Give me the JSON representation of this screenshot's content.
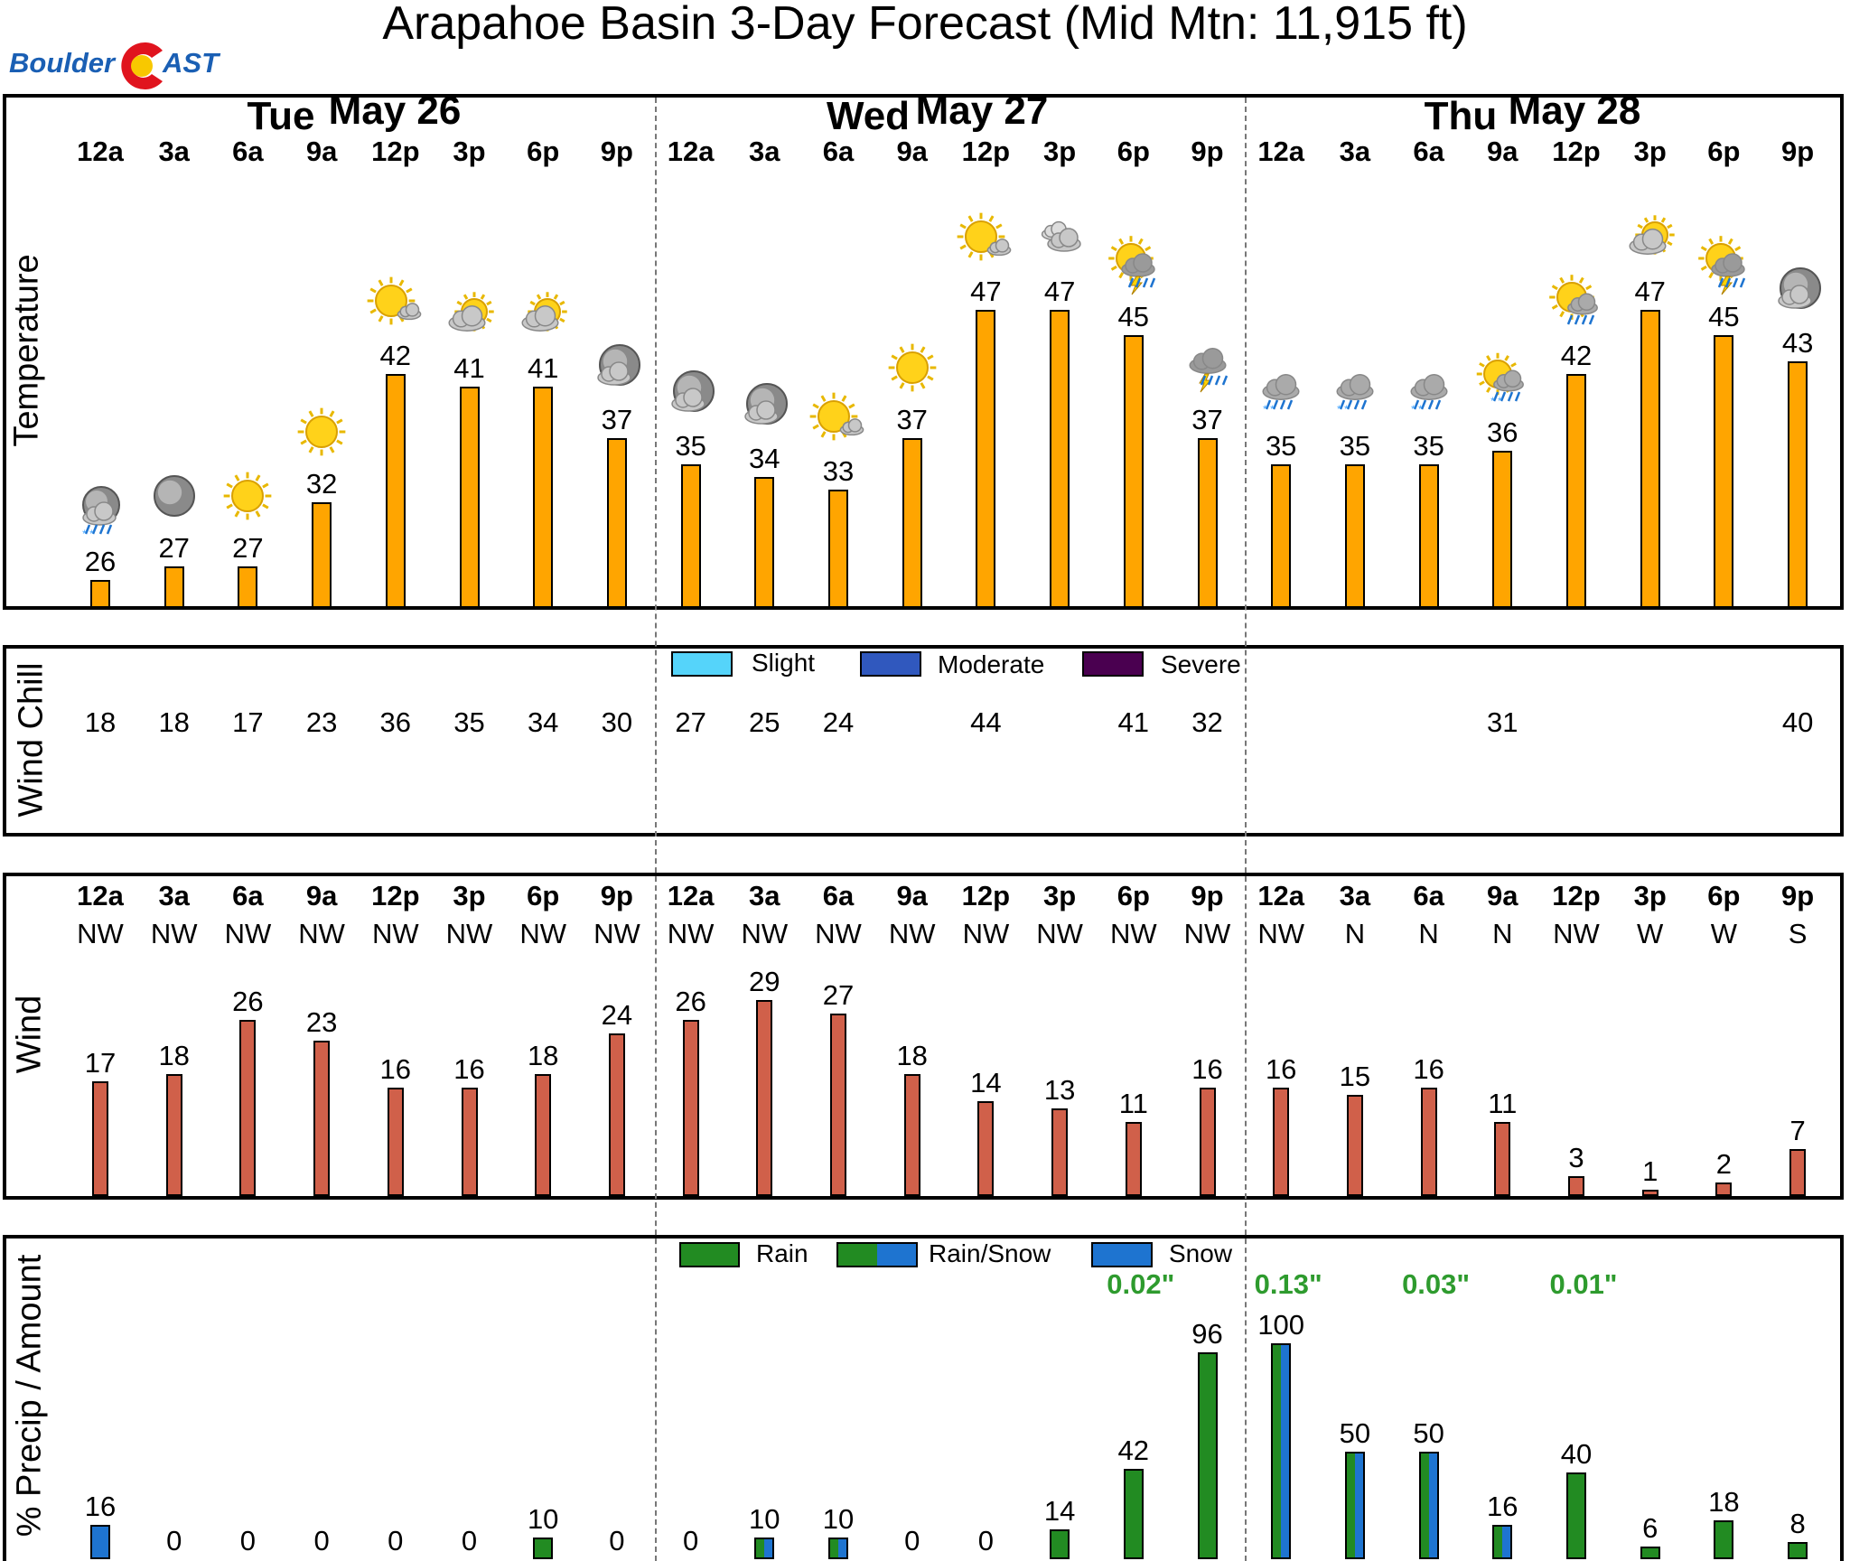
{
  "title": "Arapahoe Basin 3-Day Forecast (Mid Mtn: 11,915 ft)",
  "logo": {
    "left": "Boulder",
    "right": "AST"
  },
  "days": [
    {
      "name": "Tue",
      "date": "May 26"
    },
    {
      "name": "Wed",
      "date": "May 27"
    },
    {
      "name": "Thu",
      "date": "May 28"
    }
  ],
  "hours": [
    "12a",
    "3a",
    "6a",
    "9a",
    "12p",
    "3p",
    "6p",
    "9p",
    "12a",
    "3a",
    "6a",
    "9a",
    "12p",
    "3p",
    "6p",
    "9p",
    "12a",
    "3a",
    "6a",
    "9a",
    "12p",
    "3p",
    "6p",
    "9p"
  ],
  "colors": {
    "temperature": "#FFA500",
    "wind": "#D0604A",
    "rain": "#228B22",
    "snow": "#1E74D0",
    "amount": "#2E9B2E",
    "slight": "#55D4FA",
    "moderate": "#3058BE",
    "severe": "#4A0050"
  },
  "chart_data": [
    {
      "type": "bar",
      "ylabel": "Temperature",
      "categories_ref": "hours",
      "values": [
        26,
        27,
        27,
        32,
        42,
        41,
        41,
        37,
        35,
        34,
        33,
        37,
        47,
        47,
        45,
        37,
        35,
        35,
        35,
        36,
        42,
        47,
        45,
        43
      ],
      "icons": [
        "night-cloudy-snow",
        "night-clear",
        "sunny",
        "sunny",
        "sunny-partly-cloudy",
        "partly-cloudy",
        "partly-cloudy",
        "night-cloudy",
        "night-cloudy",
        "night-cloudy",
        "sunny-partly-cloudy",
        "sunny",
        "sunny-partly-cloudy",
        "cloudy",
        "sun-thunderstorm",
        "thunderstorm",
        "rain-snow",
        "rain-snow",
        "rain-snow",
        "sun-rain-snow",
        "sun-rain",
        "partly-cloudy",
        "sun-thunderstorm",
        "night-cloudy"
      ]
    },
    {
      "type": "table",
      "ylabel": "Wind Chill",
      "values": [
        18,
        18,
        17,
        23,
        36,
        35,
        34,
        30,
        27,
        25,
        24,
        null,
        44,
        null,
        41,
        32,
        null,
        null,
        null,
        31,
        null,
        null,
        null,
        40
      ],
      "legend": [
        "Slight",
        "Moderate",
        "Severe"
      ]
    },
    {
      "type": "bar",
      "ylabel": "Wind",
      "directions": [
        "NW",
        "NW",
        "NW",
        "NW",
        "NW",
        "NW",
        "NW",
        "NW",
        "NW",
        "NW",
        "NW",
        "NW",
        "NW",
        "NW",
        "NW",
        "NW",
        "NW",
        "N",
        "N",
        "N",
        "NW",
        "W",
        "W",
        "S"
      ],
      "values": [
        17,
        18,
        26,
        23,
        16,
        16,
        18,
        24,
        26,
        29,
        27,
        18,
        14,
        13,
        11,
        16,
        16,
        15,
        16,
        11,
        3,
        1,
        2,
        7
      ]
    },
    {
      "type": "bar",
      "ylabel": "% Precip / Amount",
      "values": [
        16,
        0,
        0,
        0,
        0,
        0,
        10,
        0,
        0,
        10,
        10,
        0,
        0,
        14,
        42,
        96,
        100,
        50,
        50,
        16,
        40,
        6,
        18,
        8
      ],
      "precip_types": [
        "snow",
        null,
        null,
        null,
        null,
        null,
        "rain",
        null,
        null,
        "rain/snow",
        "rain/snow",
        null,
        null,
        "rain",
        "rain",
        "rain",
        "rain/snow",
        "rain/snow",
        "rain/snow",
        "rain/snow",
        "rain",
        "rain",
        "rain",
        "rain"
      ],
      "legend": [
        "Rain",
        "Rain/Snow",
        "Snow"
      ],
      "amounts": [
        {
          "at": "6p Wed",
          "index": 14,
          "text": "0.02\""
        },
        {
          "at": "12a Thu",
          "index": 16,
          "text": "0.13\""
        },
        {
          "at": "6a Thu",
          "index": 18,
          "text": "0.03\""
        },
        {
          "at": "12p Thu",
          "index": 20,
          "text": "0.01\""
        }
      ]
    }
  ]
}
